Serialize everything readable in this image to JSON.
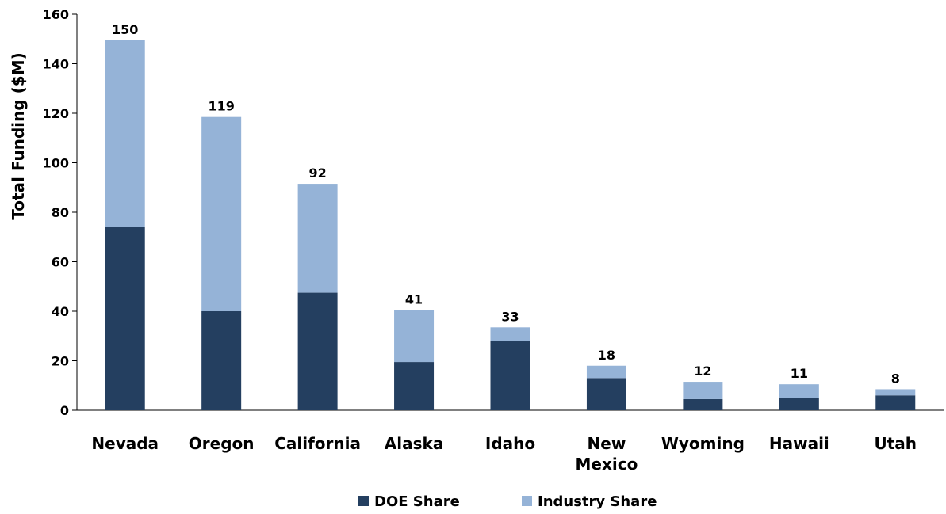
{
  "chart_data": {
    "type": "bar",
    "stacked": true,
    "title": "",
    "xlabel": "",
    "ylabel": "Total Funding ($M)",
    "ylim": [
      0,
      160
    ],
    "yticks": [
      0,
      20,
      40,
      60,
      80,
      100,
      120,
      140,
      160
    ],
    "grid": false,
    "legend_position": "bottom",
    "categories": [
      "Nevada",
      "Oregon",
      "California",
      "Alaska",
      "Idaho",
      "New Mexico",
      "Wyoming",
      "Hawaii",
      "Utah"
    ],
    "series": [
      {
        "name": "DOE Share",
        "color": "#243f60",
        "values": [
          74,
          40,
          47.5,
          19.5,
          28,
          13,
          4.5,
          5,
          6
        ]
      },
      {
        "name": "Industry Share",
        "color": "#95b3d7",
        "values": [
          75.5,
          78.5,
          44,
          21,
          5.5,
          5,
          7,
          5.5,
          2.5
        ]
      }
    ],
    "totals": [
      "150",
      "119",
      "92",
      "41",
      "33",
      "18",
      "12",
      "11",
      "8"
    ]
  }
}
